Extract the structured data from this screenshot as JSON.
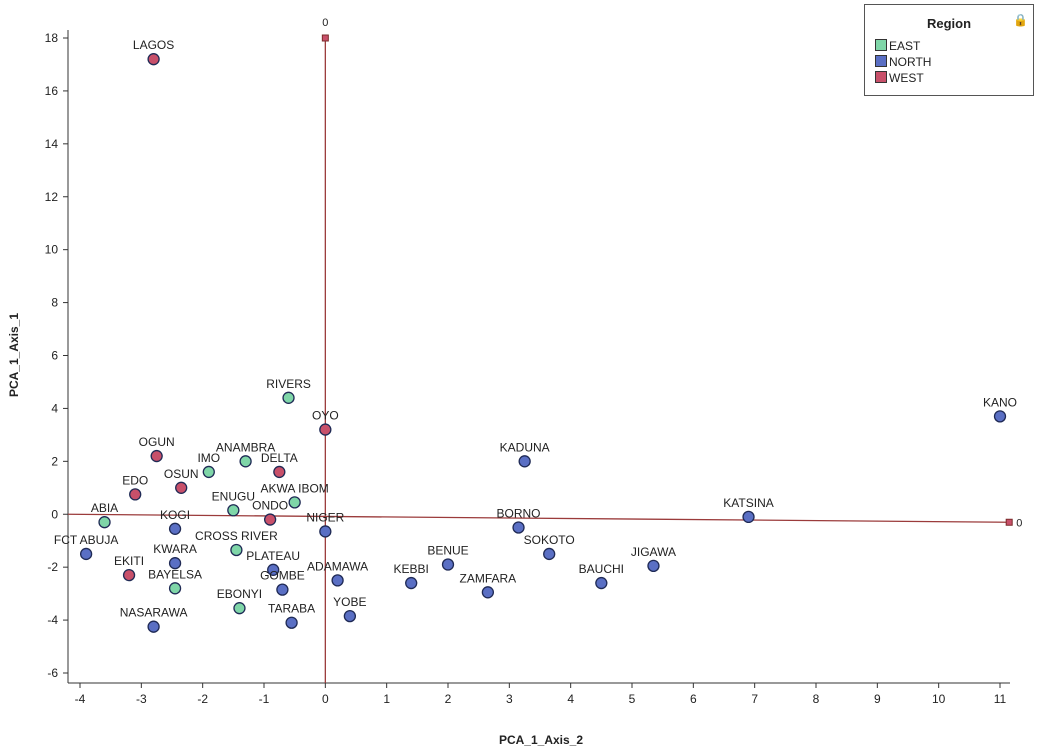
{
  "chart_data": {
    "type": "scatter",
    "title": "",
    "xlabel": "PCA_1_Axis_2",
    "ylabel": "PCA_1_Axis_1",
    "xlim": [
      -4,
      11
    ],
    "ylim": [
      -6,
      18
    ],
    "x_ticks": [
      -4,
      -3,
      -2,
      -1,
      0,
      1,
      2,
      3,
      4,
      5,
      6,
      7,
      8,
      9,
      10,
      11
    ],
    "y_ticks": [
      -6,
      -4,
      -2,
      0,
      2,
      4,
      6,
      8,
      10,
      12,
      14,
      16,
      18
    ],
    "grid": false,
    "origin_labels": {
      "vertical_top": "0",
      "horizontal_right": "0"
    },
    "legend": {
      "title": "Region",
      "position": "top-right",
      "entries": [
        {
          "name": "EAST",
          "color": "#7fd6a8"
        },
        {
          "name": "NORTH",
          "color": "#5a6fc4"
        },
        {
          "name": "WEST",
          "color": "#c8506a"
        }
      ]
    },
    "points": [
      {
        "label": "LAGOS",
        "x": -2.8,
        "y": 17.2,
        "region": "WEST"
      },
      {
        "label": "KANO",
        "x": 11.0,
        "y": 3.7,
        "region": "NORTH"
      },
      {
        "label": "RIVERS",
        "x": -0.6,
        "y": 4.4,
        "region": "EAST"
      },
      {
        "label": "OYO",
        "x": 0.0,
        "y": 3.2,
        "region": "WEST"
      },
      {
        "label": "KADUNA",
        "x": 3.25,
        "y": 2.0,
        "region": "NORTH"
      },
      {
        "label": "OGUN",
        "x": -2.75,
        "y": 2.2,
        "region": "WEST"
      },
      {
        "label": "ANAMBRA",
        "x": -1.3,
        "y": 2.0,
        "region": "EAST"
      },
      {
        "label": "IMO",
        "x": -1.9,
        "y": 1.6,
        "region": "EAST"
      },
      {
        "label": "DELTA",
        "x": -0.75,
        "y": 1.6,
        "region": "WEST"
      },
      {
        "label": "EDO",
        "x": -3.1,
        "y": 0.75,
        "region": "WEST"
      },
      {
        "label": "OSUN",
        "x": -2.35,
        "y": 1.0,
        "region": "WEST"
      },
      {
        "label": "AKWA IBOM",
        "x": -0.5,
        "y": 0.45,
        "region": "EAST"
      },
      {
        "label": "ENUGU",
        "x": -1.5,
        "y": 0.15,
        "region": "EAST"
      },
      {
        "label": "ONDO",
        "x": -0.9,
        "y": -0.2,
        "region": "WEST"
      },
      {
        "label": "NIGER",
        "x": 0.0,
        "y": -0.65,
        "region": "NORTH"
      },
      {
        "label": "ABIA",
        "x": -3.6,
        "y": -0.3,
        "region": "EAST"
      },
      {
        "label": "KOGI",
        "x": -2.45,
        "y": -0.55,
        "region": "NORTH"
      },
      {
        "label": "CROSS RIVER",
        "x": -1.45,
        "y": -1.35,
        "region": "EAST"
      },
      {
        "label": "FCT ABUJA",
        "x": -3.9,
        "y": -1.5,
        "region": "NORTH"
      },
      {
        "label": "KWARA",
        "x": -2.45,
        "y": -1.85,
        "region": "NORTH"
      },
      {
        "label": "EKITI",
        "x": -3.2,
        "y": -2.3,
        "region": "WEST"
      },
      {
        "label": "BAYELSA",
        "x": -2.45,
        "y": -2.8,
        "region": "EAST"
      },
      {
        "label": "PLATEAU",
        "x": -0.85,
        "y": -2.1,
        "region": "NORTH"
      },
      {
        "label": "GOMBE",
        "x": -0.7,
        "y": -2.85,
        "region": "NORTH"
      },
      {
        "label": "ADAMAWA",
        "x": 0.2,
        "y": -2.5,
        "region": "NORTH"
      },
      {
        "label": "EBONYI",
        "x": -1.4,
        "y": -3.55,
        "region": "EAST"
      },
      {
        "label": "TARABA",
        "x": -0.55,
        "y": -4.1,
        "region": "NORTH"
      },
      {
        "label": "YOBE",
        "x": 0.4,
        "y": -3.85,
        "region": "NORTH"
      },
      {
        "label": "NASARAWA",
        "x": -2.8,
        "y": -4.25,
        "region": "NORTH"
      },
      {
        "label": "KEBBI",
        "x": 1.4,
        "y": -2.6,
        "region": "NORTH"
      },
      {
        "label": "BENUE",
        "x": 2.0,
        "y": -1.9,
        "region": "NORTH"
      },
      {
        "label": "ZAMFARA",
        "x": 2.65,
        "y": -2.95,
        "region": "NORTH"
      },
      {
        "label": "BORNO",
        "x": 3.15,
        "y": -0.5,
        "region": "NORTH"
      },
      {
        "label": "SOKOTO",
        "x": 3.65,
        "y": -1.5,
        "region": "NORTH"
      },
      {
        "label": "BAUCHI",
        "x": 4.5,
        "y": -2.6,
        "region": "NORTH"
      },
      {
        "label": "JIGAWA",
        "x": 5.35,
        "y": -1.95,
        "region": "NORTH"
      },
      {
        "label": "KATSINA",
        "x": 6.9,
        "y": -0.1,
        "region": "NORTH"
      }
    ]
  }
}
